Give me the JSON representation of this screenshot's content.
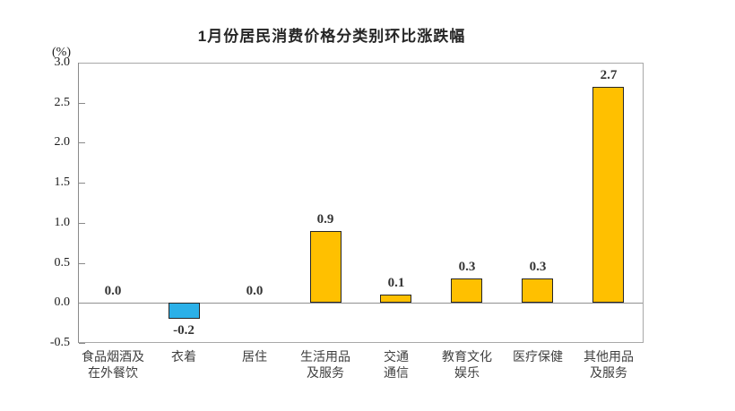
{
  "chart_data": {
    "type": "bar",
    "title": "1月份居民消费价格分类别环比涨跌幅",
    "ylabel": "(%)",
    "xlabel": "",
    "categories": [
      "食品烟酒及在外餐饮",
      "衣着",
      "居住",
      "生活用品及服务",
      "交通通信",
      "教育文化娱乐",
      "医疗保健",
      "其他用品及服务"
    ],
    "category_lines": [
      [
        "食品烟酒及",
        "在外餐饮"
      ],
      [
        "衣着"
      ],
      [
        "居住"
      ],
      [
        "生活用品",
        "及服务"
      ],
      [
        "交通",
        "通信"
      ],
      [
        "教育文化",
        "娱乐"
      ],
      [
        "医疗保健"
      ],
      [
        "其他用品",
        "及服务"
      ]
    ],
    "values": [
      0.0,
      -0.2,
      0.0,
      0.9,
      0.1,
      0.3,
      0.3,
      2.7
    ],
    "value_labels": [
      "0.0",
      "-0.2",
      "0.0",
      "0.9",
      "0.1",
      "0.3",
      "0.3",
      "2.7"
    ],
    "ylim": [
      -0.5,
      3.0
    ],
    "ytick_step": 0.5,
    "ytick_labels": [
      "3.0",
      "2.5",
      "2.0",
      "1.5",
      "1.0",
      "0.5",
      "0.0",
      "-0.5"
    ],
    "grid": false,
    "legend": false,
    "colors": {
      "positive_bar": "#FFC000",
      "negative_bar": "#2BB0E8",
      "bar_border": "#262626",
      "axis": "#8A8A8A",
      "plot_border": "#A8A8A8",
      "text": "#333333"
    }
  }
}
